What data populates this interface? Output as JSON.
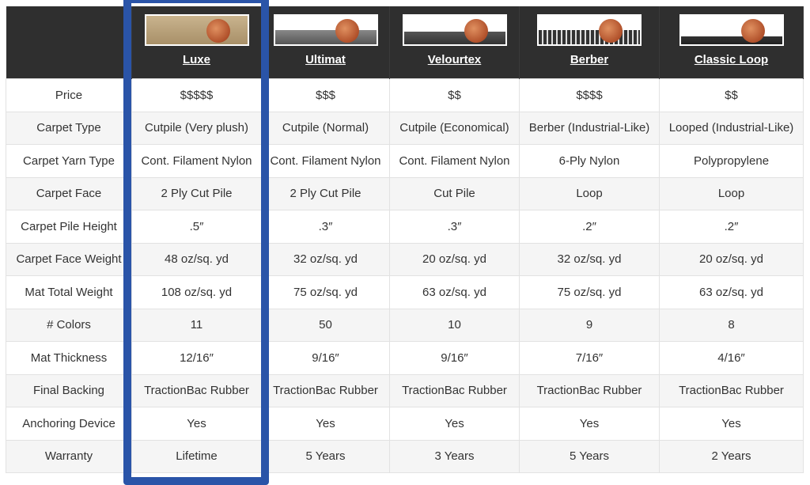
{
  "columns": [
    {
      "name": "Luxe",
      "swatch": "tan-cutpile-with-penny"
    },
    {
      "name": "Ultimat",
      "swatch": "gray-cutpile-with-penny"
    },
    {
      "name": "Velourtex",
      "swatch": "dark-cutpile-with-penny"
    },
    {
      "name": "Berber",
      "swatch": "berber-loop-with-penny"
    },
    {
      "name": "Classic Loop",
      "swatch": "thin-loop-with-penny"
    }
  ],
  "rows": [
    {
      "label": "Price",
      "values": [
        "$$$$$",
        "$$$",
        "$$",
        "$$$$",
        "$$"
      ]
    },
    {
      "label": "Carpet Type",
      "values": [
        "Cutpile (Very plush)",
        "Cutpile (Normal)",
        "Cutpile (Economical)",
        "Berber (Industrial-Like)",
        "Looped (Industrial-Like)"
      ]
    },
    {
      "label": "Carpet Yarn Type",
      "values": [
        "Cont. Filament Nylon",
        "Cont. Filament Nylon",
        "Cont. Filament Nylon",
        "6-Ply Nylon",
        "Polypropylene"
      ]
    },
    {
      "label": "Carpet Face",
      "values": [
        "2 Ply Cut Pile",
        "2 Ply Cut Pile",
        "Cut Pile",
        "Loop",
        "Loop"
      ]
    },
    {
      "label": "Carpet Pile Height",
      "values": [
        ".5″",
        ".3″",
        ".3″",
        ".2″",
        ".2″"
      ]
    },
    {
      "label": "Carpet Face Weight",
      "values": [
        "48 oz/sq. yd",
        "32 oz/sq. yd",
        "20 oz/sq. yd",
        "32 oz/sq. yd",
        "20 oz/sq. yd"
      ]
    },
    {
      "label": "Mat Total Weight",
      "values": [
        "108 oz/sq. yd",
        "75 oz/sq. yd",
        "63 oz/sq. yd",
        "75 oz/sq. yd",
        "63 oz/sq. yd"
      ]
    },
    {
      "label": "# Colors",
      "values": [
        "11",
        "50",
        "10",
        "9",
        "8"
      ]
    },
    {
      "label": "Mat Thickness",
      "values": [
        "12/16″",
        "9/16″",
        "9/16″",
        "7/16″",
        "4/16″"
      ]
    },
    {
      "label": "Final Backing",
      "values": [
        "TractionBac Rubber",
        "TractionBac Rubber",
        "TractionBac Rubber",
        "TractionBac Rubber",
        "TractionBac Rubber"
      ]
    },
    {
      "label": "Anchoring Device",
      "values": [
        "Yes",
        "Yes",
        "Yes",
        "Yes",
        "Yes"
      ]
    },
    {
      "label": "Warranty",
      "values": [
        "Lifetime",
        "5 Years",
        "3 Years",
        "5 Years",
        "2 Years"
      ]
    }
  ],
  "colors": {
    "header_bg": "#2f2f2f",
    "highlight": "#2a54a8",
    "alt_row": "#f5f5f5"
  },
  "highlighted_column": "Luxe"
}
